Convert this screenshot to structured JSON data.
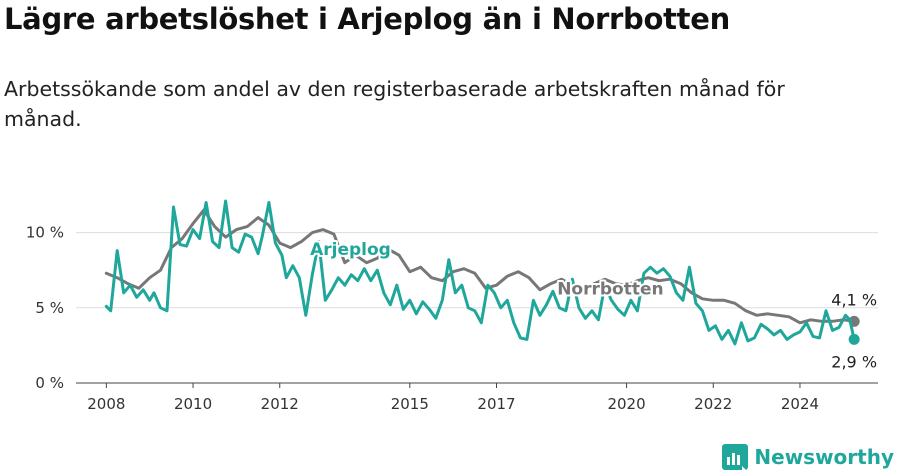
{
  "title": "Lägre arbetslöshet i Arjeplog än i Norrbotten",
  "subtitle": "Arbetssökande som andel av den registerbaserade arbetskraften månad för månad.",
  "brand": {
    "name": "Newsworthy",
    "color": "#1fa79c"
  },
  "chart_data": {
    "type": "line",
    "title": "Lägre arbetslöshet i Arjeplog än i Norrbotten",
    "xlabel": "",
    "ylabel": "",
    "x_ticks": [
      "2008",
      "2010",
      "2012",
      "2015",
      "2017",
      "2020",
      "2022",
      "2024"
    ],
    "y_ticks": [
      "0 %",
      "5 %",
      "10 %"
    ],
    "ylim": [
      0,
      12.5
    ],
    "xlim": [
      2007.3,
      2025.8
    ],
    "grid": true,
    "legend": "inline labels",
    "series": [
      {
        "name": "Norrbotten",
        "color": "#777777",
        "end_label": "4,1 %",
        "points": [
          [
            2008.0,
            7.3
          ],
          [
            2008.25,
            7.0
          ],
          [
            2008.5,
            6.6
          ],
          [
            2008.75,
            6.3
          ],
          [
            2009.0,
            7.0
          ],
          [
            2009.25,
            7.5
          ],
          [
            2009.5,
            9.0
          ],
          [
            2009.75,
            9.6
          ],
          [
            2010.0,
            10.6
          ],
          [
            2010.25,
            11.5
          ],
          [
            2010.5,
            10.4
          ],
          [
            2010.75,
            9.7
          ],
          [
            2011.0,
            10.2
          ],
          [
            2011.25,
            10.4
          ],
          [
            2011.5,
            11.0
          ],
          [
            2011.75,
            10.5
          ],
          [
            2012.0,
            9.3
          ],
          [
            2012.25,
            9.0
          ],
          [
            2012.5,
            9.4
          ],
          [
            2012.75,
            10.0
          ],
          [
            2013.0,
            10.2
          ],
          [
            2013.25,
            9.9
          ],
          [
            2013.5,
            8.0
          ],
          [
            2013.75,
            8.5
          ],
          [
            2014.0,
            8.0
          ],
          [
            2014.25,
            8.3
          ],
          [
            2014.5,
            8.9
          ],
          [
            2014.75,
            8.5
          ],
          [
            2015.0,
            7.4
          ],
          [
            2015.25,
            7.7
          ],
          [
            2015.5,
            7.0
          ],
          [
            2015.75,
            6.8
          ],
          [
            2016.0,
            7.4
          ],
          [
            2016.25,
            7.6
          ],
          [
            2016.5,
            7.3
          ],
          [
            2016.75,
            6.3
          ],
          [
            2017.0,
            6.5
          ],
          [
            2017.25,
            7.1
          ],
          [
            2017.5,
            7.4
          ],
          [
            2017.75,
            7.0
          ],
          [
            2018.0,
            6.2
          ],
          [
            2018.25,
            6.6
          ],
          [
            2018.5,
            6.9
          ],
          [
            2018.75,
            6.5
          ],
          [
            2019.0,
            6.2
          ],
          [
            2019.25,
            6.6
          ],
          [
            2019.5,
            6.9
          ],
          [
            2019.75,
            6.6
          ],
          [
            2020.0,
            6.5
          ],
          [
            2020.25,
            6.8
          ],
          [
            2020.5,
            7.0
          ],
          [
            2020.75,
            6.8
          ],
          [
            2021.0,
            6.9
          ],
          [
            2021.25,
            6.6
          ],
          [
            2021.5,
            6.0
          ],
          [
            2021.75,
            5.6
          ],
          [
            2022.0,
            5.5
          ],
          [
            2022.25,
            5.5
          ],
          [
            2022.5,
            5.3
          ],
          [
            2022.75,
            4.8
          ],
          [
            2023.0,
            4.5
          ],
          [
            2023.25,
            4.6
          ],
          [
            2023.5,
            4.5
          ],
          [
            2023.75,
            4.4
          ],
          [
            2024.0,
            4.0
          ],
          [
            2024.25,
            4.2
          ],
          [
            2024.5,
            4.1
          ],
          [
            2024.75,
            4.1
          ],
          [
            2025.0,
            4.2
          ],
          [
            2025.25,
            4.1
          ]
        ]
      },
      {
        "name": "Arjeplog",
        "color": "#1fa79c",
        "end_label": "2,9 %",
        "points": [
          [
            2008.0,
            5.1
          ],
          [
            2008.1,
            4.8
          ],
          [
            2008.25,
            8.8
          ],
          [
            2008.4,
            6.0
          ],
          [
            2008.55,
            6.5
          ],
          [
            2008.7,
            5.7
          ],
          [
            2008.85,
            6.2
          ],
          [
            2009.0,
            5.5
          ],
          [
            2009.1,
            6.0
          ],
          [
            2009.25,
            5.0
          ],
          [
            2009.4,
            4.8
          ],
          [
            2009.55,
            11.7
          ],
          [
            2009.7,
            9.2
          ],
          [
            2009.85,
            9.1
          ],
          [
            2010.0,
            10.2
          ],
          [
            2010.15,
            9.6
          ],
          [
            2010.3,
            12.0
          ],
          [
            2010.45,
            9.4
          ],
          [
            2010.6,
            9.0
          ],
          [
            2010.75,
            12.1
          ],
          [
            2010.9,
            9.0
          ],
          [
            2011.05,
            8.7
          ],
          [
            2011.2,
            9.9
          ],
          [
            2011.35,
            9.7
          ],
          [
            2011.5,
            8.6
          ],
          [
            2011.6,
            9.8
          ],
          [
            2011.75,
            12.0
          ],
          [
            2011.9,
            9.3
          ],
          [
            2012.05,
            8.5
          ],
          [
            2012.15,
            7.0
          ],
          [
            2012.3,
            7.8
          ],
          [
            2012.45,
            7.0
          ],
          [
            2012.6,
            4.5
          ],
          [
            2012.75,
            7.2
          ],
          [
            2012.9,
            9.4
          ],
          [
            2013.05,
            5.5
          ],
          [
            2013.2,
            6.2
          ],
          [
            2013.35,
            7.0
          ],
          [
            2013.5,
            6.5
          ],
          [
            2013.65,
            7.2
          ],
          [
            2013.8,
            6.8
          ],
          [
            2013.95,
            7.6
          ],
          [
            2014.1,
            6.8
          ],
          [
            2014.25,
            7.5
          ],
          [
            2014.4,
            6.0
          ],
          [
            2014.55,
            5.2
          ],
          [
            2014.7,
            6.5
          ],
          [
            2014.85,
            4.9
          ],
          [
            2015.0,
            5.5
          ],
          [
            2015.15,
            4.6
          ],
          [
            2015.3,
            5.4
          ],
          [
            2015.45,
            4.9
          ],
          [
            2015.6,
            4.3
          ],
          [
            2015.75,
            5.5
          ],
          [
            2015.9,
            8.2
          ],
          [
            2016.05,
            6.0
          ],
          [
            2016.2,
            6.5
          ],
          [
            2016.35,
            5.0
          ],
          [
            2016.5,
            4.8
          ],
          [
            2016.65,
            4.0
          ],
          [
            2016.8,
            6.5
          ],
          [
            2016.95,
            6.0
          ],
          [
            2017.1,
            5.0
          ],
          [
            2017.25,
            5.5
          ],
          [
            2017.4,
            4.0
          ],
          [
            2017.55,
            3.0
          ],
          [
            2017.7,
            2.9
          ],
          [
            2017.85,
            5.5
          ],
          [
            2018.0,
            4.5
          ],
          [
            2018.15,
            5.2
          ],
          [
            2018.3,
            6.1
          ],
          [
            2018.45,
            5.0
          ],
          [
            2018.6,
            4.8
          ],
          [
            2018.75,
            6.9
          ],
          [
            2018.9,
            5.0
          ],
          [
            2019.05,
            4.3
          ],
          [
            2019.2,
            4.8
          ],
          [
            2019.35,
            4.2
          ],
          [
            2019.5,
            6.5
          ],
          [
            2019.65,
            5.5
          ],
          [
            2019.8,
            4.9
          ],
          [
            2019.95,
            4.5
          ],
          [
            2020.1,
            5.5
          ],
          [
            2020.25,
            4.8
          ],
          [
            2020.4,
            7.3
          ],
          [
            2020.55,
            7.7
          ],
          [
            2020.7,
            7.3
          ],
          [
            2020.85,
            7.6
          ],
          [
            2021.0,
            7.1
          ],
          [
            2021.15,
            6.0
          ],
          [
            2021.3,
            5.5
          ],
          [
            2021.45,
            7.7
          ],
          [
            2021.6,
            5.3
          ],
          [
            2021.75,
            4.8
          ],
          [
            2021.9,
            3.5
          ],
          [
            2022.05,
            3.8
          ],
          [
            2022.2,
            2.9
          ],
          [
            2022.35,
            3.5
          ],
          [
            2022.5,
            2.6
          ],
          [
            2022.65,
            4.0
          ],
          [
            2022.8,
            2.8
          ],
          [
            2022.95,
            3.0
          ],
          [
            2023.1,
            3.9
          ],
          [
            2023.25,
            3.6
          ],
          [
            2023.4,
            3.2
          ],
          [
            2023.55,
            3.5
          ],
          [
            2023.7,
            2.9
          ],
          [
            2023.85,
            3.2
          ],
          [
            2024.0,
            3.4
          ],
          [
            2024.15,
            4.0
          ],
          [
            2024.3,
            3.1
          ],
          [
            2024.45,
            3.0
          ],
          [
            2024.6,
            4.8
          ],
          [
            2024.75,
            3.5
          ],
          [
            2024.9,
            3.7
          ],
          [
            2025.05,
            4.5
          ],
          [
            2025.15,
            4.2
          ],
          [
            2025.25,
            2.9
          ]
        ]
      }
    ]
  }
}
